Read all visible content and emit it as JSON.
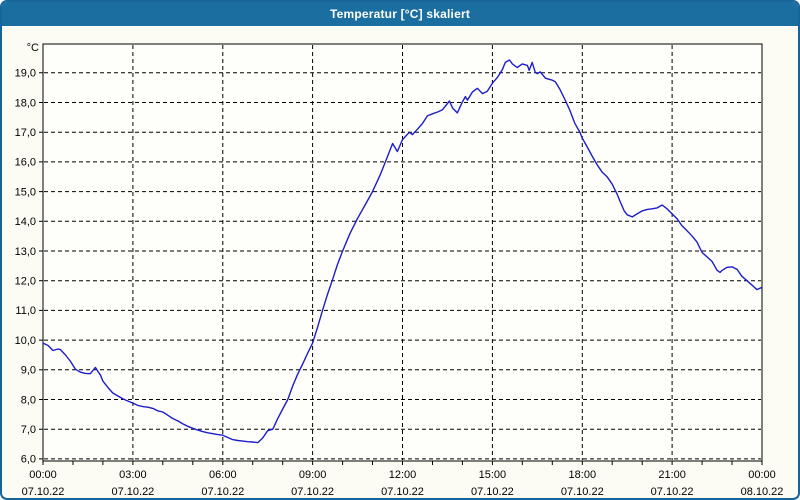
{
  "window": {
    "title": "Temperatur [°C] skaliert"
  },
  "colors": {
    "titlebar": "#1b6ea0",
    "window_border": "#17649b",
    "background": "#fcfcf4",
    "plot_background": "#fefefa",
    "grid": "#000000",
    "axis_text": "#000000",
    "title_text": "#ffffff",
    "line": "#1d1dc9"
  },
  "chart_data": {
    "type": "line",
    "title": "Temperatur [°C] skaliert",
    "y_unit_label": "°C",
    "xlabel": "",
    "ylabel": "Temperatur [°C]",
    "x_range": [
      0,
      24
    ],
    "y_range": [
      5.93,
      19.97
    ],
    "grid": {
      "horizontal_step": 1,
      "vertical_step_hours": 3,
      "style": "dashed"
    },
    "legend_position": "none",
    "y_ticks": [
      {
        "value": 19,
        "label": "19,0"
      },
      {
        "value": 18,
        "label": "18,0"
      },
      {
        "value": 17,
        "label": "17,0"
      },
      {
        "value": 16,
        "label": "16,0"
      },
      {
        "value": 15,
        "label": "15,0"
      },
      {
        "value": 14,
        "label": "14,0"
      },
      {
        "value": 13,
        "label": "13,0"
      },
      {
        "value": 12,
        "label": "12,0"
      },
      {
        "value": 11,
        "label": "11,0"
      },
      {
        "value": 10,
        "label": "10,0"
      },
      {
        "value": 9,
        "label": "9,0"
      },
      {
        "value": 8,
        "label": "8,0"
      },
      {
        "value": 7,
        "label": "7,0"
      },
      {
        "value": 6,
        "label": "6,0"
      }
    ],
    "x_ticks": [
      {
        "hour": 0,
        "time": "00:00",
        "date": "07.10.22"
      },
      {
        "hour": 3,
        "time": "03:00",
        "date": "07.10.22"
      },
      {
        "hour": 6,
        "time": "06:00",
        "date": "07.10.22"
      },
      {
        "hour": 9,
        "time": "09:00",
        "date": "07.10.22"
      },
      {
        "hour": 12,
        "time": "12:00",
        "date": "07.10.22"
      },
      {
        "hour": 15,
        "time": "15:00",
        "date": "07.10.22"
      },
      {
        "hour": 18,
        "time": "18:00",
        "date": "07.10.22"
      },
      {
        "hour": 21,
        "time": "21:00",
        "date": "07.10.22"
      },
      {
        "hour": 24,
        "time": "00:00",
        "date": "08.10.22"
      }
    ],
    "minor_x_tick_every_hours": 1,
    "series": [
      {
        "name": "Temperatur [°C]",
        "color": "#1d1dc9",
        "points": [
          [
            0,
            9.9
          ],
          [
            0.17,
            9.82
          ],
          [
            0.33,
            9.65
          ],
          [
            0.5,
            9.7
          ],
          [
            0.58,
            9.68
          ],
          [
            0.75,
            9.5
          ],
          [
            0.92,
            9.28
          ],
          [
            1.08,
            9.02
          ],
          [
            1.25,
            8.92
          ],
          [
            1.42,
            8.88
          ],
          [
            1.58,
            8.87
          ],
          [
            1.75,
            9.08
          ],
          [
            1.83,
            8.95
          ],
          [
            1.92,
            8.82
          ],
          [
            2,
            8.62
          ],
          [
            2.17,
            8.4
          ],
          [
            2.33,
            8.22
          ],
          [
            2.5,
            8.12
          ],
          [
            2.67,
            8.02
          ],
          [
            2.83,
            7.95
          ],
          [
            3,
            7.88
          ],
          [
            3.17,
            7.8
          ],
          [
            3.33,
            7.76
          ],
          [
            3.5,
            7.74
          ],
          [
            3.67,
            7.7
          ],
          [
            3.83,
            7.62
          ],
          [
            4,
            7.58
          ],
          [
            4.17,
            7.47
          ],
          [
            4.33,
            7.36
          ],
          [
            4.5,
            7.28
          ],
          [
            4.67,
            7.18
          ],
          [
            4.83,
            7.1
          ],
          [
            5,
            7.03
          ],
          [
            5.17,
            6.97
          ],
          [
            5.33,
            6.92
          ],
          [
            5.5,
            6.88
          ],
          [
            5.67,
            6.85
          ],
          [
            5.83,
            6.82
          ],
          [
            6,
            6.8
          ],
          [
            6.17,
            6.72
          ],
          [
            6.33,
            6.65
          ],
          [
            6.5,
            6.62
          ],
          [
            6.67,
            6.6
          ],
          [
            6.83,
            6.58
          ],
          [
            7,
            6.57
          ],
          [
            7.17,
            6.55
          ],
          [
            7.33,
            6.7
          ],
          [
            7.5,
            6.95
          ],
          [
            7.67,
            7.0
          ],
          [
            7.83,
            7.35
          ],
          [
            8,
            7.68
          ],
          [
            8.17,
            8.0
          ],
          [
            8.33,
            8.45
          ],
          [
            8.5,
            8.85
          ],
          [
            8.67,
            9.2
          ],
          [
            8.83,
            9.55
          ],
          [
            9,
            9.9
          ],
          [
            9.17,
            10.45
          ],
          [
            9.33,
            11.0
          ],
          [
            9.5,
            11.55
          ],
          [
            9.67,
            12.05
          ],
          [
            9.83,
            12.55
          ],
          [
            10,
            13.0
          ],
          [
            10.25,
            13.6
          ],
          [
            10.5,
            14.1
          ],
          [
            10.75,
            14.55
          ],
          [
            11,
            15.0
          ],
          [
            11.25,
            15.55
          ],
          [
            11.43,
            16.0
          ],
          [
            11.67,
            16.62
          ],
          [
            11.83,
            16.35
          ],
          [
            12,
            16.75
          ],
          [
            12.23,
            17.0
          ],
          [
            12.33,
            16.92
          ],
          [
            12.5,
            17.1
          ],
          [
            12.67,
            17.3
          ],
          [
            12.83,
            17.55
          ],
          [
            13,
            17.62
          ],
          [
            13.17,
            17.68
          ],
          [
            13.33,
            17.75
          ],
          [
            13.57,
            18.05
          ],
          [
            13.67,
            17.82
          ],
          [
            13.83,
            17.65
          ],
          [
            14,
            18.02
          ],
          [
            14.1,
            18.2
          ],
          [
            14.17,
            18.08
          ],
          [
            14.33,
            18.35
          ],
          [
            14.5,
            18.48
          ],
          [
            14.67,
            18.3
          ],
          [
            14.83,
            18.38
          ],
          [
            15,
            18.65
          ],
          [
            15.17,
            18.85
          ],
          [
            15.33,
            19.1
          ],
          [
            15.43,
            19.35
          ],
          [
            15.57,
            19.43
          ],
          [
            15.67,
            19.3
          ],
          [
            15.83,
            19.18
          ],
          [
            16,
            19.3
          ],
          [
            16.17,
            19.25
          ],
          [
            16.23,
            19.08
          ],
          [
            16.33,
            19.35
          ],
          [
            16.43,
            19.02
          ],
          [
            16.5,
            18.97
          ],
          [
            16.6,
            19.03
          ],
          [
            16.77,
            18.82
          ],
          [
            17,
            18.75
          ],
          [
            17.1,
            18.7
          ],
          [
            17.25,
            18.45
          ],
          [
            17.42,
            18.1
          ],
          [
            17.58,
            17.75
          ],
          [
            17.75,
            17.3
          ],
          [
            17.92,
            17.0
          ],
          [
            18,
            16.8
          ],
          [
            18.17,
            16.5
          ],
          [
            18.33,
            16.2
          ],
          [
            18.5,
            15.9
          ],
          [
            18.67,
            15.65
          ],
          [
            18.83,
            15.5
          ],
          [
            19,
            15.25
          ],
          [
            19.17,
            14.9
          ],
          [
            19.27,
            14.65
          ],
          [
            19.4,
            14.35
          ],
          [
            19.5,
            14.22
          ],
          [
            19.67,
            14.15
          ],
          [
            19.83,
            14.25
          ],
          [
            20,
            14.35
          ],
          [
            20.17,
            14.4
          ],
          [
            20.33,
            14.42
          ],
          [
            20.5,
            14.45
          ],
          [
            20.67,
            14.55
          ],
          [
            20.83,
            14.42
          ],
          [
            21,
            14.25
          ],
          [
            21.17,
            14.08
          ],
          [
            21.33,
            13.85
          ],
          [
            21.5,
            13.68
          ],
          [
            21.67,
            13.5
          ],
          [
            21.83,
            13.3
          ],
          [
            22,
            12.95
          ],
          [
            22.17,
            12.8
          ],
          [
            22.33,
            12.65
          ],
          [
            22.5,
            12.35
          ],
          [
            22.6,
            12.28
          ],
          [
            22.67,
            12.35
          ],
          [
            22.83,
            12.45
          ],
          [
            23,
            12.47
          ],
          [
            23.17,
            12.38
          ],
          [
            23.33,
            12.15
          ],
          [
            23.5,
            12.0
          ],
          [
            23.67,
            11.85
          ],
          [
            23.83,
            11.7
          ],
          [
            24,
            11.78
          ]
        ]
      }
    ]
  }
}
